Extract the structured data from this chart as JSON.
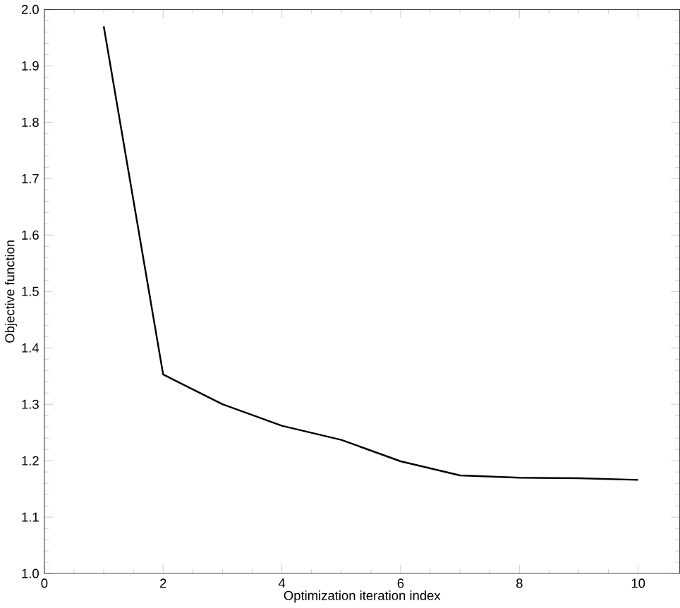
{
  "chart_data": {
    "type": "line",
    "xlabel": "Optimization iteration index",
    "ylabel": "Objective function",
    "x": [
      1,
      2,
      3,
      4,
      5,
      6,
      7,
      8,
      9,
      10
    ],
    "values": [
      1.97,
      1.353,
      1.3,
      1.262,
      1.237,
      1.199,
      1.174,
      1.17,
      1.169,
      1.166
    ],
    "color": "#000000",
    "marker": "none",
    "line_style": "solid",
    "xlim": [
      0,
      10.7
    ],
    "xticks": [
      0,
      2,
      4,
      6,
      8,
      10
    ],
    "ylim": [
      1.0,
      2.0
    ],
    "yticks": [
      {
        "value": 1.0,
        "label": "1.0"
      },
      1.1,
      1.2,
      1.3,
      1.4,
      1.5,
      1.6,
      1.7,
      1.8,
      1.9,
      {
        "value": 2.0,
        "label": "2.0"
      }
    ]
  }
}
